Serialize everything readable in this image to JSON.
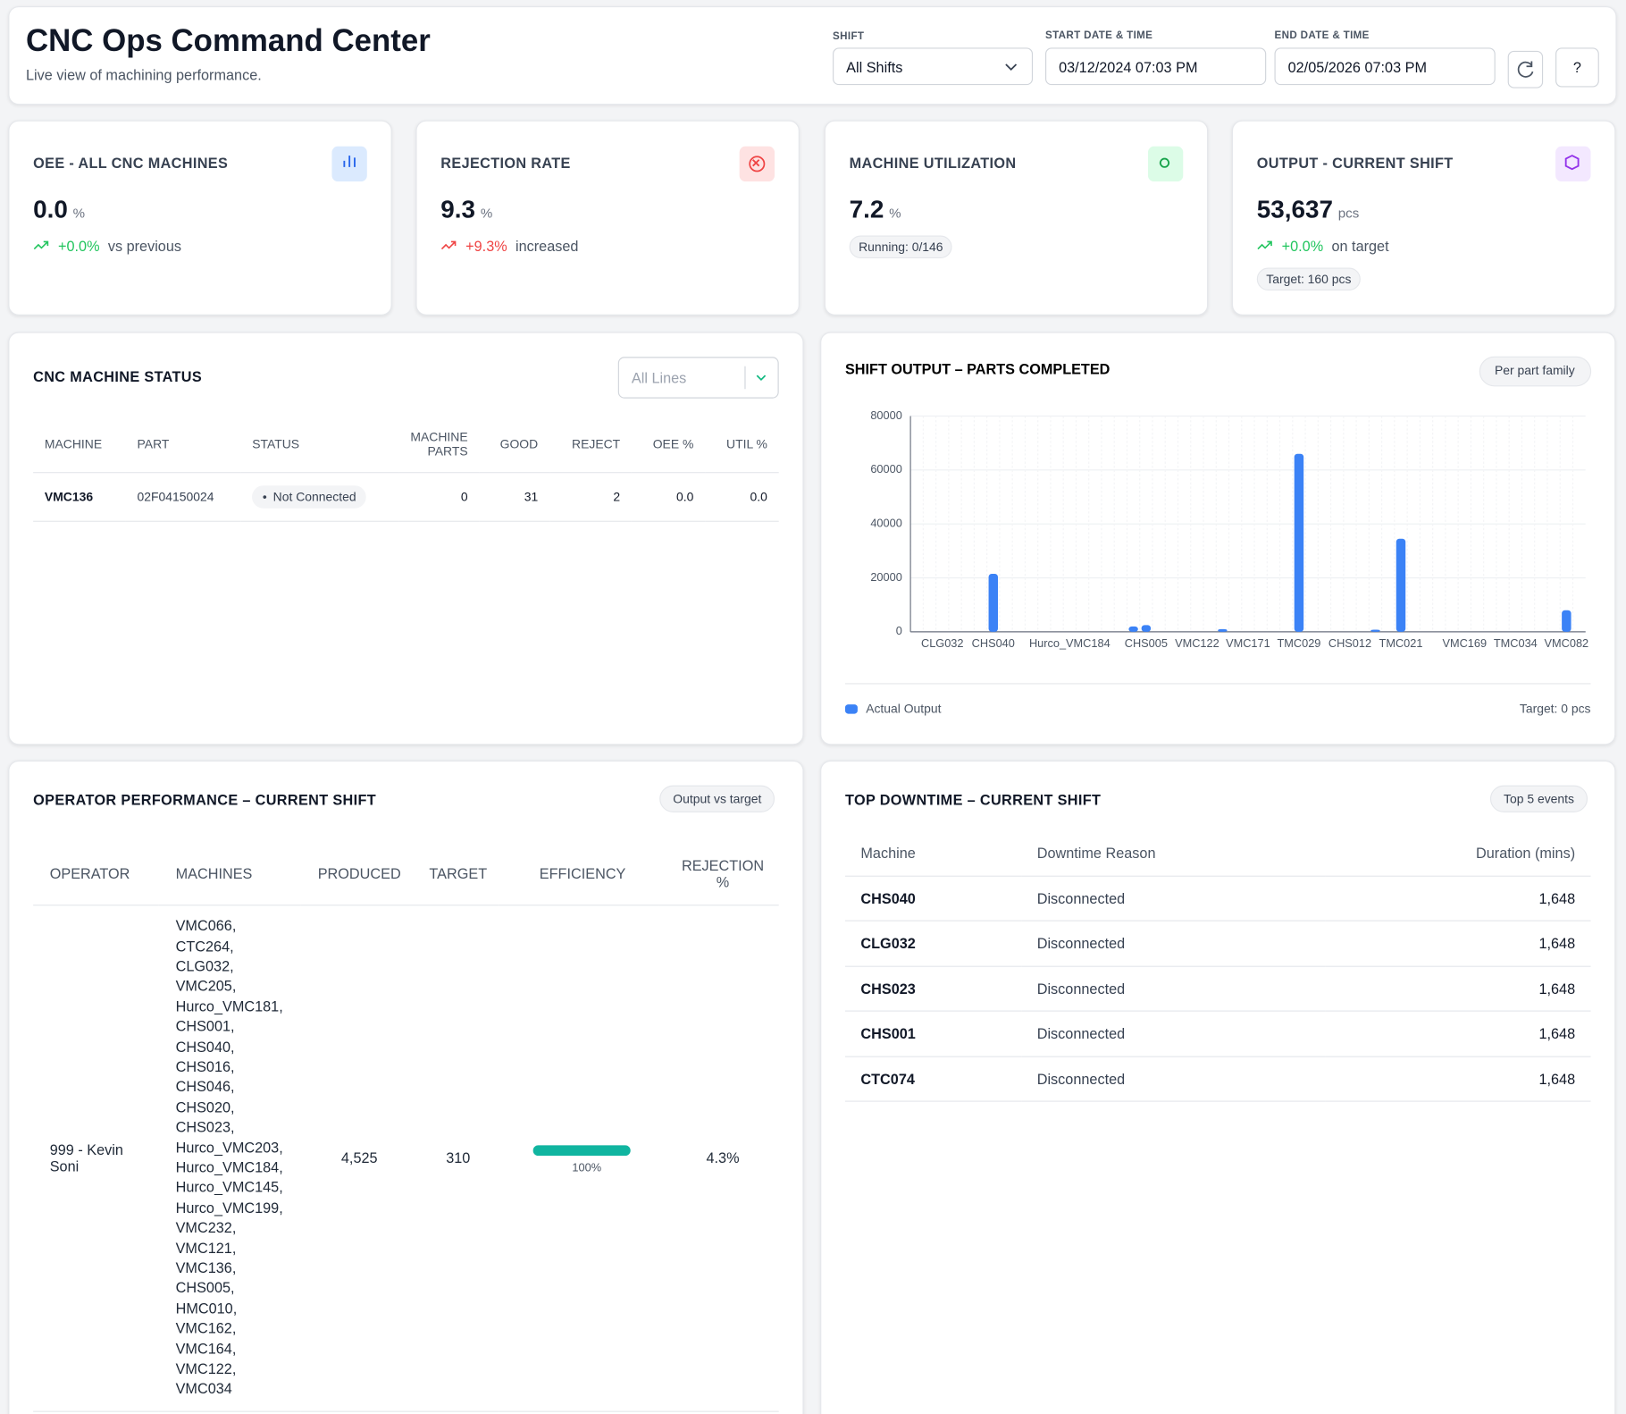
{
  "header": {
    "title": "CNC Ops Command Center",
    "subtitle": "Live view of machining performance.",
    "filters": [
      {
        "label": "SHIFT",
        "value": "All Shifts"
      },
      {
        "label": "START DATE & TIME",
        "value": "03/12/2024 07:03 PM"
      },
      {
        "label": "END DATE & TIME",
        "value": "02/05/2026 07:03 PM"
      }
    ],
    "help": "?"
  },
  "kpis": [
    {
      "title": "OEE - ALL CNC MACHINES",
      "value": "0.0",
      "unit": "%",
      "delta": "+0.0%",
      "note": "vs previous"
    },
    {
      "title": "REJECTION RATE",
      "value": "9.3",
      "unit": "%",
      "delta": "+9.3%",
      "note": "increased"
    },
    {
      "title": "MACHINE UTILIZATION",
      "value": "7.2",
      "unit": "%",
      "badge": "Running: 0/146"
    },
    {
      "title": "OUTPUT - CURRENT SHIFT",
      "value": "53,637",
      "unit": "pcs",
      "delta": "+0.0%",
      "note": "on target",
      "badge": "Target: 160 pcs"
    }
  ],
  "machine_status": {
    "title": "CNC MACHINE STATUS",
    "filter": "All Lines",
    "columns": [
      "MACHINE",
      "PART",
      "STATUS",
      "MACHINE PARTS",
      "GOOD",
      "REJECT",
      "OEE %",
      "UTIL %"
    ],
    "rows": [
      [
        "VMC136",
        "02F04150024",
        "Not Connected",
        "0",
        "31",
        "2",
        "0.0",
        "0.0"
      ]
    ]
  },
  "chart_data": {
    "type": "bar",
    "title": "SHIFT OUTPUT – PARTS COMPLETED",
    "badge": "Per part family",
    "categories": [
      null,
      null,
      "CLG032",
      null,
      null,
      null,
      "CHS040",
      null,
      null,
      null,
      null,
      null,
      "Hurco_VMC184",
      null,
      null,
      null,
      null,
      null,
      "CHS005",
      null,
      null,
      null,
      "VMC122",
      null,
      null,
      null,
      "VMC171",
      null,
      null,
      null,
      "TMC029",
      null,
      null,
      null,
      "CHS012",
      null,
      null,
      null,
      "TMC021",
      null,
      null,
      null,
      null,
      "VMC169",
      null,
      null,
      null,
      "TMC034",
      null,
      null,
      null,
      "VMC082",
      null
    ],
    "series": [
      {
        "name": "Actual Output",
        "color": "#3b82f6",
        "values": [
          0,
          0,
          0,
          0,
          0,
          0,
          21500,
          0,
          0,
          0,
          0,
          0,
          0,
          0,
          0,
          0,
          0,
          2000,
          2500,
          0,
          0,
          0,
          0,
          0,
          1000,
          0,
          0,
          0,
          0,
          0,
          66000,
          0,
          0,
          0,
          0,
          0,
          800,
          0,
          34500,
          0,
          0,
          0,
          0,
          0,
          0,
          0,
          0,
          0,
          0,
          0,
          0,
          8000,
          0
        ]
      }
    ],
    "ylim": [
      0,
      80000
    ],
    "yticks": [
      0,
      20000,
      40000,
      60000,
      80000
    ],
    "grid": true,
    "annotation": "Target: 0 pcs"
  },
  "operators": {
    "title": "OPERATOR PERFORMANCE – CURRENT SHIFT",
    "badge": "Output vs target",
    "columns": [
      "OPERATOR",
      "MACHINES",
      "PRODUCED",
      "TARGET",
      "EFFICIENCY",
      "REJECTION %"
    ],
    "rows": [
      {
        "operator": "999 - Kevin Soni",
        "machines": [
          "VMC066,",
          "CTC264,",
          "CLG032,",
          "VMC205,",
          "Hurco_VMC181,",
          "CHS001,",
          "CHS040,",
          "CHS016,",
          "CHS046,",
          "CHS020,",
          "CHS023,",
          "Hurco_VMC203,",
          "Hurco_VMC184,",
          "Hurco_VMC145,",
          "Hurco_VMC199,",
          "VMC232,",
          "VMC121,",
          "VMC136,",
          "CHS005,",
          "HMC010,",
          "VMC162,",
          "VMC164,",
          "VMC122,",
          "VMC034"
        ],
        "produced": "4,525",
        "target": "310",
        "efficiency": {
          "value": 100,
          "label": "100%"
        },
        "rejection": "4.3%"
      }
    ]
  },
  "downtime": {
    "title": "TOP DOWNTIME – CURRENT SHIFT",
    "badge": "Top 5 events",
    "columns": [
      "Machine",
      "Downtime Reason",
      "Duration (mins)"
    ],
    "rows": [
      [
        "CHS040",
        "Disconnected",
        "1,648"
      ],
      [
        "CLG032",
        "Disconnected",
        "1,648"
      ],
      [
        "CHS023",
        "Disconnected",
        "1,648"
      ],
      [
        "CHS001",
        "Disconnected",
        "1,648"
      ],
      [
        "CTC074",
        "Disconnected",
        "1,648"
      ]
    ]
  }
}
